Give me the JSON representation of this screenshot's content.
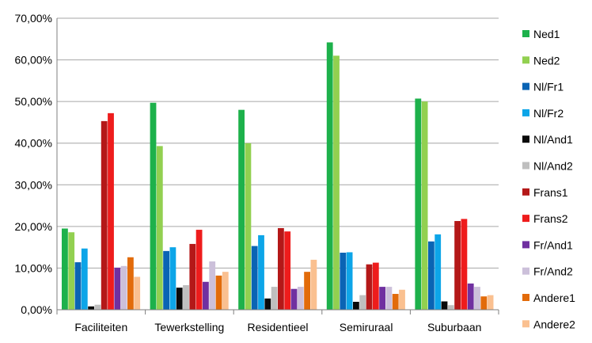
{
  "chart_data": {
    "type": "bar",
    "title": "",
    "xlabel": "",
    "ylabel": "",
    "ylim": [
      0,
      70
    ],
    "ytick_step": 10,
    "ytick_labels": [
      "0,00%",
      "10,00%",
      "20,00%",
      "30,00%",
      "40,00%",
      "50,00%",
      "60,00%",
      "70,00%"
    ],
    "grid": true,
    "legend_position": "right",
    "categories": [
      "Faciliteiten",
      "Tewerkstelling",
      "Residentieel",
      "Semiruraal",
      "Suburbaan"
    ],
    "series": [
      {
        "name": "Ned1",
        "color": "#1DB14B",
        "values": [
          19.5,
          49.7,
          48.0,
          64.2,
          50.7
        ]
      },
      {
        "name": "Ned2",
        "color": "#92D050",
        "values": [
          18.6,
          39.3,
          40.0,
          61.0,
          50.0
        ]
      },
      {
        "name": "Nl/Fr1",
        "color": "#0A64B4",
        "values": [
          11.4,
          14.1,
          15.3,
          13.7,
          16.4
        ]
      },
      {
        "name": "Nl/Fr2",
        "color": "#0DA5E8",
        "values": [
          14.7,
          15.0,
          17.9,
          13.8,
          18.1
        ]
      },
      {
        "name": "Nl/And1",
        "color": "#0A0A0A",
        "values": [
          0.8,
          5.3,
          2.7,
          1.9,
          2.0
        ]
      },
      {
        "name": "Nl/And2",
        "color": "#BFBFBF",
        "values": [
          1.2,
          5.9,
          5.5,
          3.5,
          1.1
        ]
      },
      {
        "name": "Frans1",
        "color": "#B41818",
        "values": [
          45.3,
          15.8,
          19.6,
          10.9,
          21.3
        ]
      },
      {
        "name": "Frans2",
        "color": "#EE1C1C",
        "values": [
          47.2,
          19.2,
          18.8,
          11.3,
          21.8
        ]
      },
      {
        "name": "Fr/And1",
        "color": "#7030A0",
        "values": [
          10.1,
          6.7,
          5.0,
          5.5,
          6.3
        ]
      },
      {
        "name": "Fr/And2",
        "color": "#CCC0DA",
        "values": [
          10.5,
          11.6,
          5.5,
          5.5,
          5.5
        ]
      },
      {
        "name": "Andere1",
        "color": "#E26B0A",
        "values": [
          12.6,
          8.2,
          9.1,
          3.8,
          3.2
        ]
      },
      {
        "name": "Andere2",
        "color": "#FAC090",
        "values": [
          7.9,
          9.1,
          12.0,
          4.8,
          3.5
        ]
      }
    ]
  }
}
